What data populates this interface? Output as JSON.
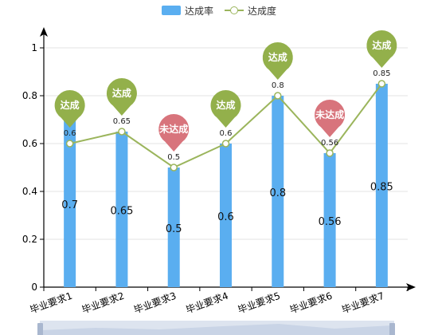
{
  "legend": {
    "bar_label": "达成率",
    "line_label": "达成度"
  },
  "colors": {
    "bar": "#5aaef0",
    "line": "#9bb55c",
    "pin_achieved": "#93b04b",
    "pin_not_achieved": "#d8747c",
    "axis": "#000000",
    "grid": "#e3e3e3",
    "zoom_bg": "#dde4ef",
    "zoom_fill": "#c9d4e6",
    "zoom_handle": "#a9b7cf"
  },
  "chart_data": {
    "type": "bar",
    "categories": [
      "毕业要求1",
      "毕业要求2",
      "毕业要求3",
      "毕业要求4",
      "毕业要求5",
      "毕业要求6",
      "毕业要求7"
    ],
    "ylim": [
      0,
      1
    ],
    "yticks": [
      "0",
      "0.2",
      "0.4",
      "0.6",
      "0.8",
      "1"
    ],
    "ytick_values": [
      0,
      0.2,
      0.4,
      0.6,
      0.8,
      1
    ],
    "legend_position": "top-center",
    "grid": true,
    "series": [
      {
        "name": "达成率",
        "type": "bar",
        "values": [
          0.7,
          0.65,
          0.5,
          0.6,
          0.8,
          0.56,
          0.85
        ],
        "labels": [
          "0.7",
          "0.65",
          "0.5",
          "0.6",
          "0.8",
          "0.56",
          "0.85"
        ]
      },
      {
        "name": "达成度",
        "type": "line",
        "values": [
          0.6,
          0.65,
          0.5,
          0.6,
          0.8,
          0.56,
          0.85
        ],
        "labels": [
          "0.6",
          "0.65",
          "0.5",
          "0.6",
          "0.8",
          "0.56",
          "0.85"
        ]
      }
    ],
    "markers": [
      "达成",
      "达成",
      "未达成",
      "达成",
      "达成",
      "未达成",
      "达成"
    ],
    "marker_achieved": [
      true,
      true,
      false,
      true,
      true,
      false,
      true
    ]
  }
}
